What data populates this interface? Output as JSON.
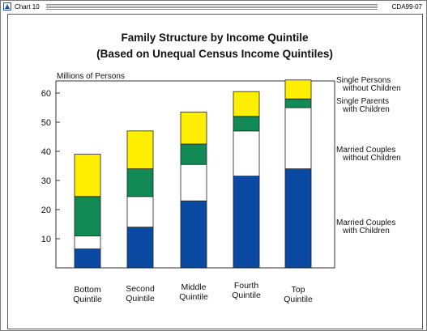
{
  "window": {
    "chart_label": "Chart 10",
    "code": "CDA99-07"
  },
  "chart_data": {
    "type": "bar",
    "stacked": true,
    "title": "Family Structure by Income Quintile",
    "subtitle": "(Based on Unequal Census Income Quintiles)",
    "ylabel": "Millions of Persons",
    "ylim": [
      0,
      65
    ],
    "yticks": [
      10,
      20,
      30,
      40,
      50,
      60
    ],
    "categories": [
      [
        "Bottom",
        "Quintile"
      ],
      [
        "Second",
        "Quintile"
      ],
      [
        "Middle",
        "Quintile"
      ],
      [
        "Fourth",
        "Quintile"
      ],
      [
        "Top",
        "Quintile"
      ]
    ],
    "series": [
      {
        "name": [
          "Married Couples",
          "with Children"
        ],
        "color": "#0a4aa3",
        "values": [
          6.5,
          14,
          23,
          31.5,
          34
        ]
      },
      {
        "name": [
          "Married Couples",
          "without Children"
        ],
        "color": "#ffffff",
        "values": [
          4.5,
          10.5,
          12.5,
          15.5,
          21
        ]
      },
      {
        "name": [
          "Single Parents",
          "with Children"
        ],
        "color": "#118a56",
        "values": [
          13.5,
          9.5,
          7,
          5,
          3
        ]
      },
      {
        "name": [
          "Single Persons",
          "without Children"
        ],
        "color": "#ffee00",
        "values": [
          14.5,
          13,
          11,
          8.5,
          6.5
        ]
      }
    ],
    "legend_placement": "right",
    "grid": false
  }
}
